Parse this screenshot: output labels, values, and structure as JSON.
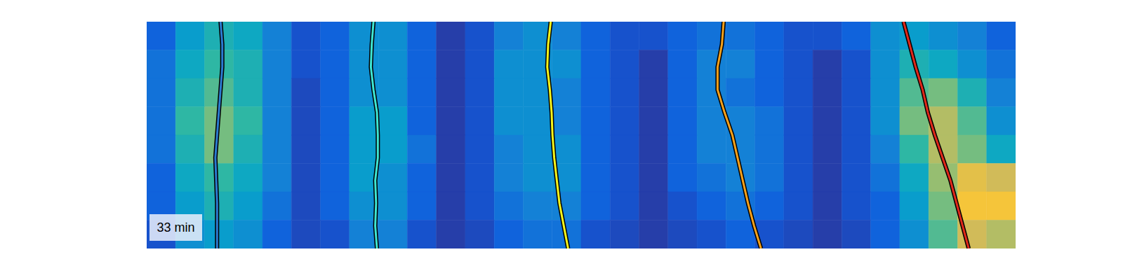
{
  "chart_data": {
    "type": "heatmap",
    "annotation": "33 min",
    "xlim": [
      0,
      30
    ],
    "ylim": [
      0,
      8
    ],
    "tick_labels": false,
    "heatmap": {
      "x": [
        0,
        1,
        2,
        3,
        4,
        5,
        6,
        7,
        8,
        9,
        10,
        11,
        12,
        13,
        14,
        15,
        16,
        17,
        18,
        19,
        20,
        21,
        22,
        23,
        24,
        25,
        26,
        27,
        28,
        29,
        30
      ],
      "y": [
        0,
        1,
        2,
        3,
        4,
        5,
        6,
        7,
        8
      ],
      "zlim": [
        0,
        1
      ],
      "values": [
        [
          0.15,
          0.35,
          0.45,
          0.4,
          0.25,
          0.1,
          0.15,
          0.3,
          0.3,
          0.15,
          0.05,
          0.1,
          0.25,
          0.3,
          0.25,
          0.15,
          0.1,
          0.1,
          0.15,
          0.2,
          0.2,
          0.15,
          0.1,
          0.1,
          0.15,
          0.3,
          0.35,
          0.3,
          0.25,
          0.15
        ],
        [
          0.2,
          0.4,
          0.5,
          0.45,
          0.25,
          0.1,
          0.15,
          0.3,
          0.3,
          0.15,
          0.05,
          0.1,
          0.3,
          0.3,
          0.3,
          0.15,
          0.1,
          0.05,
          0.15,
          0.25,
          0.25,
          0.15,
          0.1,
          0.05,
          0.1,
          0.3,
          0.45,
          0.4,
          0.3,
          0.2
        ],
        [
          0.2,
          0.45,
          0.55,
          0.45,
          0.25,
          0.08,
          0.15,
          0.3,
          0.3,
          0.15,
          0.05,
          0.1,
          0.3,
          0.3,
          0.25,
          0.15,
          0.1,
          0.05,
          0.15,
          0.25,
          0.2,
          0.15,
          0.1,
          0.05,
          0.1,
          0.3,
          0.55,
          0.6,
          0.45,
          0.25
        ],
        [
          0.2,
          0.5,
          0.6,
          0.5,
          0.25,
          0.08,
          0.15,
          0.35,
          0.35,
          0.15,
          0.05,
          0.1,
          0.3,
          0.3,
          0.25,
          0.15,
          0.1,
          0.05,
          0.15,
          0.25,
          0.25,
          0.2,
          0.1,
          0.05,
          0.1,
          0.3,
          0.6,
          0.7,
          0.55,
          0.3
        ],
        [
          0.2,
          0.45,
          0.6,
          0.45,
          0.25,
          0.08,
          0.15,
          0.35,
          0.35,
          0.2,
          0.05,
          0.1,
          0.25,
          0.3,
          0.3,
          0.15,
          0.1,
          0.05,
          0.15,
          0.25,
          0.25,
          0.2,
          0.1,
          0.05,
          0.1,
          0.25,
          0.5,
          0.7,
          0.6,
          0.4
        ],
        [
          0.15,
          0.4,
          0.5,
          0.4,
          0.25,
          0.08,
          0.15,
          0.35,
          0.3,
          0.15,
          0.05,
          0.1,
          0.25,
          0.3,
          0.3,
          0.15,
          0.1,
          0.05,
          0.15,
          0.2,
          0.25,
          0.2,
          0.1,
          0.05,
          0.1,
          0.2,
          0.4,
          0.65,
          0.8,
          0.75
        ],
        [
          0.15,
          0.35,
          0.45,
          0.35,
          0.2,
          0.08,
          0.15,
          0.3,
          0.3,
          0.15,
          0.05,
          0.1,
          0.2,
          0.25,
          0.25,
          0.15,
          0.1,
          0.05,
          0.1,
          0.15,
          0.2,
          0.15,
          0.1,
          0.05,
          0.1,
          0.15,
          0.35,
          0.6,
          0.85,
          0.85
        ],
        [
          0.1,
          0.3,
          0.35,
          0.3,
          0.15,
          0.08,
          0.1,
          0.25,
          0.25,
          0.1,
          0.05,
          0.08,
          0.15,
          0.2,
          0.2,
          0.1,
          0.08,
          0.05,
          0.08,
          0.1,
          0.15,
          0.1,
          0.08,
          0.05,
          0.08,
          0.15,
          0.3,
          0.55,
          0.75,
          0.7
        ]
      ]
    },
    "series": [
      {
        "type": "line",
        "color": "#2b7bd0",
        "x": [
          2.55,
          2.61,
          2.61,
          2.55,
          2.49,
          2.43,
          2.37,
          2.4,
          2.43,
          2.43,
          2.43
        ],
        "y": [
          0,
          0.8,
          1.6,
          2.4,
          3.2,
          4,
          4.8,
          5.6,
          6.4,
          7.2,
          8
        ]
      },
      {
        "type": "line",
        "color": "#3ee6d2",
        "x": [
          7.83,
          7.77,
          7.74,
          7.83,
          7.95,
          7.98,
          7.98,
          7.89,
          7.92,
          7.89,
          7.95
        ],
        "y": [
          0,
          0.8,
          1.6,
          2.4,
          3.2,
          4,
          4.8,
          5.6,
          6.4,
          7.2,
          8
        ]
      },
      {
        "type": "line",
        "color": "#f5f51a",
        "x": [
          13.95,
          13.86,
          13.83,
          13.92,
          13.98,
          14.01,
          14.07,
          14.16,
          14.25,
          14.4,
          14.55
        ],
        "y": [
          0,
          0.8,
          1.6,
          2.4,
          3.2,
          4,
          4.8,
          5.6,
          6.4,
          7.2,
          8
        ]
      },
      {
        "type": "line",
        "color": "#f5a01a",
        "x": [
          19.92,
          19.86,
          19.71,
          19.71,
          19.95,
          20.22,
          20.4,
          20.58,
          20.76,
          20.97,
          21.21
        ],
        "y": [
          0,
          0.8,
          1.6,
          2.4,
          3.2,
          4,
          4.8,
          5.6,
          6.4,
          7.2,
          8
        ]
      },
      {
        "type": "line",
        "color": "#e0281a",
        "x": [
          26.13,
          26.34,
          26.55,
          26.79,
          26.97,
          27.21,
          27.48,
          27.75,
          27.96,
          28.17,
          28.38
        ],
        "y": [
          0,
          0.8,
          1.6,
          2.4,
          3.2,
          4,
          4.8,
          5.6,
          6.4,
          7.2,
          8
        ]
      }
    ]
  }
}
